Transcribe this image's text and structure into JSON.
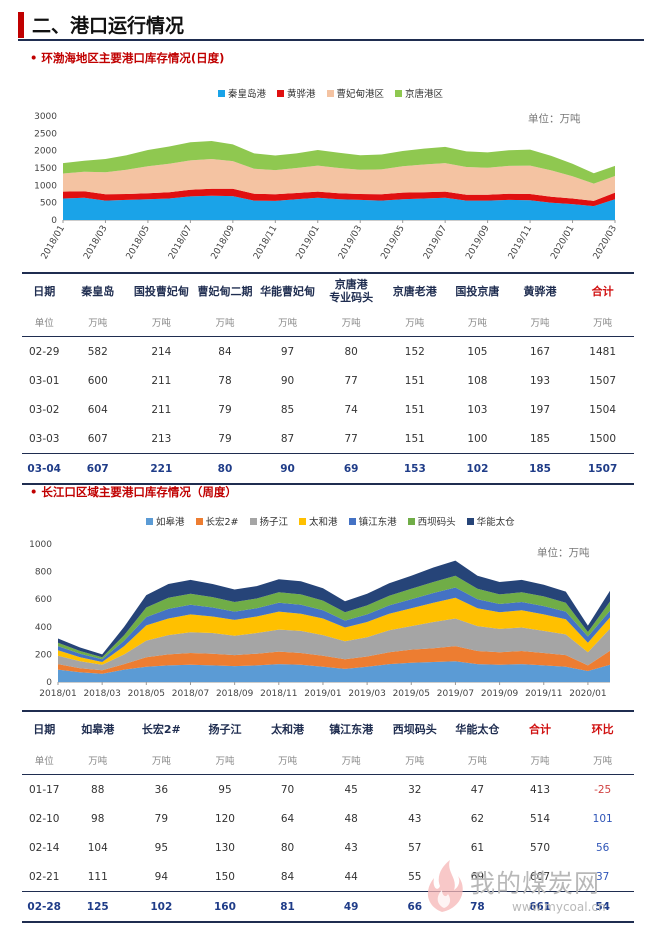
{
  "page_title": "二、港口运行情况",
  "section1": {
    "subtitle": "• 环渤海地区主要港口库存情况(日度)",
    "legend": [
      {
        "name": "秦皇岛港",
        "color": "#1aa3e8"
      },
      {
        "name": "黄骅港",
        "color": "#e01010"
      },
      {
        "name": "曹妃甸港区",
        "color": "#f4c3a2"
      },
      {
        "name": "京唐港区",
        "color": "#8fc850"
      }
    ],
    "unit": "单位：万吨",
    "table": {
      "headers": [
        "日期",
        "秦皇岛",
        "国投曹妃甸",
        "曹妃甸二期",
        "华能曹妃甸",
        "京唐港\n专业码头",
        "京唐老港",
        "国投京唐",
        "黄骅港",
        "合计"
      ],
      "units": [
        "单位",
        "万吨",
        "万吨",
        "万吨",
        "万吨",
        "万吨",
        "万吨",
        "万吨",
        "万吨",
        "万吨"
      ],
      "rows": [
        [
          "02-29",
          "582",
          "214",
          "84",
          "97",
          "80",
          "152",
          "105",
          "167",
          "1481"
        ],
        [
          "03-01",
          "600",
          "211",
          "78",
          "90",
          "77",
          "151",
          "108",
          "193",
          "1507"
        ],
        [
          "03-02",
          "604",
          "211",
          "79",
          "85",
          "74",
          "151",
          "103",
          "197",
          "1504"
        ],
        [
          "03-03",
          "607",
          "213",
          "79",
          "87",
          "77",
          "151",
          "100",
          "185",
          "1500"
        ],
        [
          "03-04",
          "607",
          "221",
          "80",
          "90",
          "69",
          "153",
          "102",
          "185",
          "1507"
        ]
      ]
    }
  },
  "section2": {
    "subtitle": "• 长江口区域主要港口库存情况（周度）",
    "legend": [
      {
        "name": "如皋港",
        "color": "#5b9bd5"
      },
      {
        "name": "长宏2#",
        "color": "#ed7d31"
      },
      {
        "name": "扬子江",
        "color": "#a5a5a5"
      },
      {
        "name": "太和港",
        "color": "#ffc000"
      },
      {
        "name": "镇江东港",
        "color": "#4472c4"
      },
      {
        "name": "西坝码头",
        "color": "#70ad47"
      },
      {
        "name": "华能太仓",
        "color": "#264478"
      }
    ],
    "unit": "单位：万吨",
    "table": {
      "headers": [
        "日期",
        "如皋港",
        "长宏2#",
        "扬子江",
        "太和港",
        "镇江东港",
        "西坝码头",
        "华能太仓",
        "合计",
        "环比"
      ],
      "units": [
        "单位",
        "万吨",
        "万吨",
        "万吨",
        "万吨",
        "万吨",
        "万吨",
        "万吨",
        "万吨",
        "万吨"
      ],
      "rows": [
        [
          "01-17",
          "88",
          "36",
          "95",
          "70",
          "45",
          "32",
          "47",
          "413",
          "-25"
        ],
        [
          "02-10",
          "98",
          "79",
          "120",
          "64",
          "48",
          "43",
          "62",
          "514",
          "101"
        ],
        [
          "02-14",
          "104",
          "95",
          "130",
          "80",
          "43",
          "57",
          "61",
          "570",
          "56"
        ],
        [
          "02-21",
          "111",
          "94",
          "150",
          "84",
          "44",
          "55",
          "69",
          "607",
          "37"
        ],
        [
          "02-28",
          "125",
          "102",
          "160",
          "81",
          "49",
          "66",
          "78",
          "661",
          "54"
        ]
      ]
    }
  },
  "chart_data": [
    {
      "type": "area",
      "stacked": true,
      "x": [
        "2018/01",
        "2018/02",
        "2018/03",
        "2018/04",
        "2018/05",
        "2018/06",
        "2018/07",
        "2018/08",
        "2018/09",
        "2018/10",
        "2018/11",
        "2018/12",
        "2019/01",
        "2019/02",
        "2019/03",
        "2019/04",
        "2019/05",
        "2019/06",
        "2019/07",
        "2019/08",
        "2019/09",
        "2019/10",
        "2019/11",
        "2019/12",
        "2020/01",
        "2020/02",
        "2020/03"
      ],
      "tick_labels": [
        "2018/01",
        "2018/03",
        "2018/05",
        "2018/07",
        "2018/09",
        "2018/11",
        "2019/01",
        "2019/03",
        "2019/05",
        "2019/07",
        "2019/09",
        "2019/11",
        "2020/01",
        "2020/03"
      ],
      "ylim": [
        0,
        3000
      ],
      "yticks": [
        "0",
        "500",
        "1000",
        "1500",
        "2000",
        "2500",
        "3000"
      ],
      "series": [
        {
          "name": "秦皇岛港",
          "values": [
            620,
            640,
            560,
            580,
            600,
            620,
            680,
            700,
            690,
            560,
            550,
            600,
            640,
            600,
            580,
            560,
            600,
            620,
            640,
            560,
            560,
            580,
            570,
            500,
            460,
            400,
            600
          ]
        },
        {
          "name": "黄骅港",
          "values": [
            200,
            190,
            180,
            170,
            170,
            180,
            190,
            200,
            210,
            200,
            190,
            180,
            180,
            170,
            170,
            180,
            190,
            180,
            180,
            170,
            170,
            180,
            180,
            170,
            160,
            150,
            190
          ]
        },
        {
          "name": "曹妃甸港区",
          "values": [
            520,
            560,
            640,
            700,
            780,
            820,
            850,
            860,
            800,
            720,
            700,
            720,
            750,
            730,
            700,
            720,
            760,
            800,
            820,
            800,
            780,
            800,
            820,
            760,
            640,
            500,
            480
          ]
        },
        {
          "name": "京唐港区",
          "values": [
            300,
            320,
            380,
            420,
            470,
            500,
            520,
            520,
            480,
            440,
            420,
            420,
            450,
            440,
            420,
            430,
            440,
            460,
            470,
            450,
            440,
            450,
            460,
            420,
            360,
            300,
            290
          ]
        }
      ],
      "grid": false
    },
    {
      "type": "area",
      "stacked": true,
      "x": [
        "2018/01",
        "2018/02",
        "2018/03",
        "2018/04",
        "2018/05",
        "2018/06",
        "2018/07",
        "2018/08",
        "2018/09",
        "2018/10",
        "2018/11",
        "2018/12",
        "2019/01",
        "2019/02",
        "2019/03",
        "2019/04",
        "2019/05",
        "2019/06",
        "2019/07",
        "2019/08",
        "2019/09",
        "2019/10",
        "2019/11",
        "2019/12",
        "2020/01",
        "2020/02"
      ],
      "tick_labels": [
        "2018/01",
        "2018/03",
        "2018/05",
        "2018/07",
        "2018/09",
        "2018/11",
        "2019/01",
        "2019/03",
        "2019/05",
        "2019/07",
        "2019/09",
        "2019/11",
        "2020/01"
      ],
      "ylim": [
        0,
        1000
      ],
      "yticks": [
        "0",
        "200",
        "400",
        "600",
        "800",
        "1000"
      ],
      "series": [
        {
          "name": "如皋港",
          "values": [
            90,
            70,
            60,
            90,
            110,
            120,
            125,
            120,
            115,
            120,
            130,
            125,
            110,
            95,
            110,
            130,
            140,
            145,
            150,
            130,
            125,
            130,
            120,
            110,
            80,
            125
          ]
        },
        {
          "name": "长宏2#",
          "values": [
            40,
            30,
            25,
            40,
            70,
            80,
            85,
            85,
            80,
            85,
            90,
            85,
            80,
            70,
            75,
            85,
            95,
            100,
            110,
            95,
            90,
            95,
            90,
            85,
            40,
            102
          ]
        },
        {
          "name": "扬子江",
          "values": [
            60,
            50,
            40,
            70,
            120,
            140,
            150,
            150,
            140,
            150,
            160,
            160,
            150,
            130,
            140,
            160,
            170,
            190,
            200,
            180,
            170,
            170,
            160,
            150,
            95,
            160
          ]
        },
        {
          "name": "太和港",
          "values": [
            40,
            30,
            20,
            60,
            110,
            120,
            130,
            120,
            115,
            120,
            130,
            125,
            120,
            100,
            110,
            120,
            130,
            140,
            150,
            130,
            120,
            125,
            120,
            110,
            70,
            81
          ]
        },
        {
          "name": "镇江东港",
          "values": [
            30,
            25,
            20,
            40,
            60,
            70,
            70,
            65,
            60,
            60,
            65,
            65,
            60,
            50,
            55,
            60,
            65,
            70,
            75,
            65,
            60,
            60,
            60,
            55,
            45,
            49
          ]
        },
        {
          "name": "西坝码头",
          "values": [
            25,
            20,
            15,
            40,
            70,
            80,
            80,
            75,
            70,
            70,
            75,
            75,
            70,
            60,
            65,
            70,
            75,
            80,
            85,
            75,
            70,
            70,
            70,
            65,
            32,
            66
          ]
        },
        {
          "name": "华能太仓",
          "values": [
            30,
            25,
            20,
            60,
            90,
            100,
            100,
            95,
            90,
            90,
            95,
            95,
            90,
            80,
            85,
            90,
            95,
            105,
            110,
            95,
            90,
            90,
            85,
            80,
            47,
            78
          ]
        }
      ],
      "grid": false
    }
  ],
  "watermark": {
    "text": "我的煤炭网",
    "url": "www.mycoal.cn"
  }
}
